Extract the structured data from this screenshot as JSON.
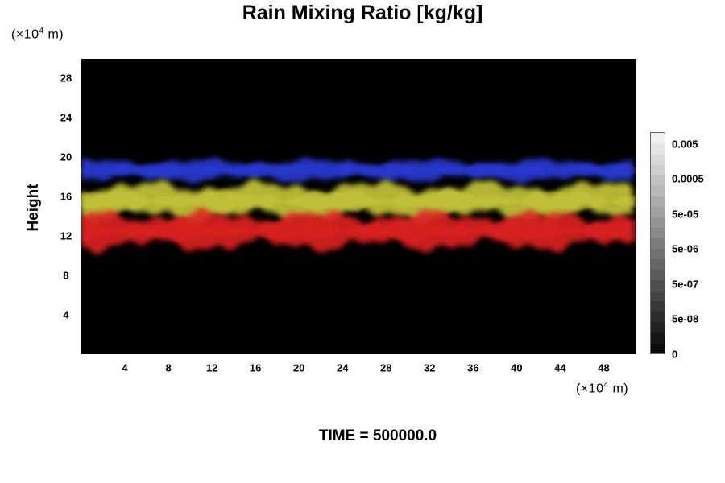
{
  "chart_data": {
    "type": "heatmap",
    "title": "Rain Mixing Ratio [kg/kg]",
    "ylabel": "Height",
    "y_unit_prefix": "(×10",
    "y_unit_exp": "4",
    "y_unit_suffix": " m)",
    "x_unit_prefix": "(×10",
    "x_unit_exp": "4",
    "x_unit_suffix": " m)",
    "x_ticks": [
      "4",
      "8",
      "12",
      "16",
      "20",
      "24",
      "28",
      "32",
      "36",
      "40",
      "44",
      "48"
    ],
    "y_ticks": [
      "4",
      "8",
      "12",
      "16",
      "20",
      "24",
      "28"
    ],
    "xlim": [
      0,
      51
    ],
    "ylim": [
      0,
      30
    ],
    "colorbar_labels": [
      "0.005",
      "0.0005",
      "5e-05",
      "5e-06",
      "5e-07",
      "5e-08",
      "0"
    ],
    "colorbar_levels": 21,
    "bands": [
      {
        "color": "#2b3bd8",
        "y_range": [
          17.5,
          19.8
        ],
        "description": "blue upper band"
      },
      {
        "color": "#c8c83a",
        "y_range": [
          13.5,
          17.5
        ],
        "description": "yellow-green middle band"
      },
      {
        "color": "#e02020",
        "y_range": [
          10.5,
          14.5
        ],
        "description": "red lower band"
      }
    ],
    "time_label": "TIME = 500000.0"
  }
}
